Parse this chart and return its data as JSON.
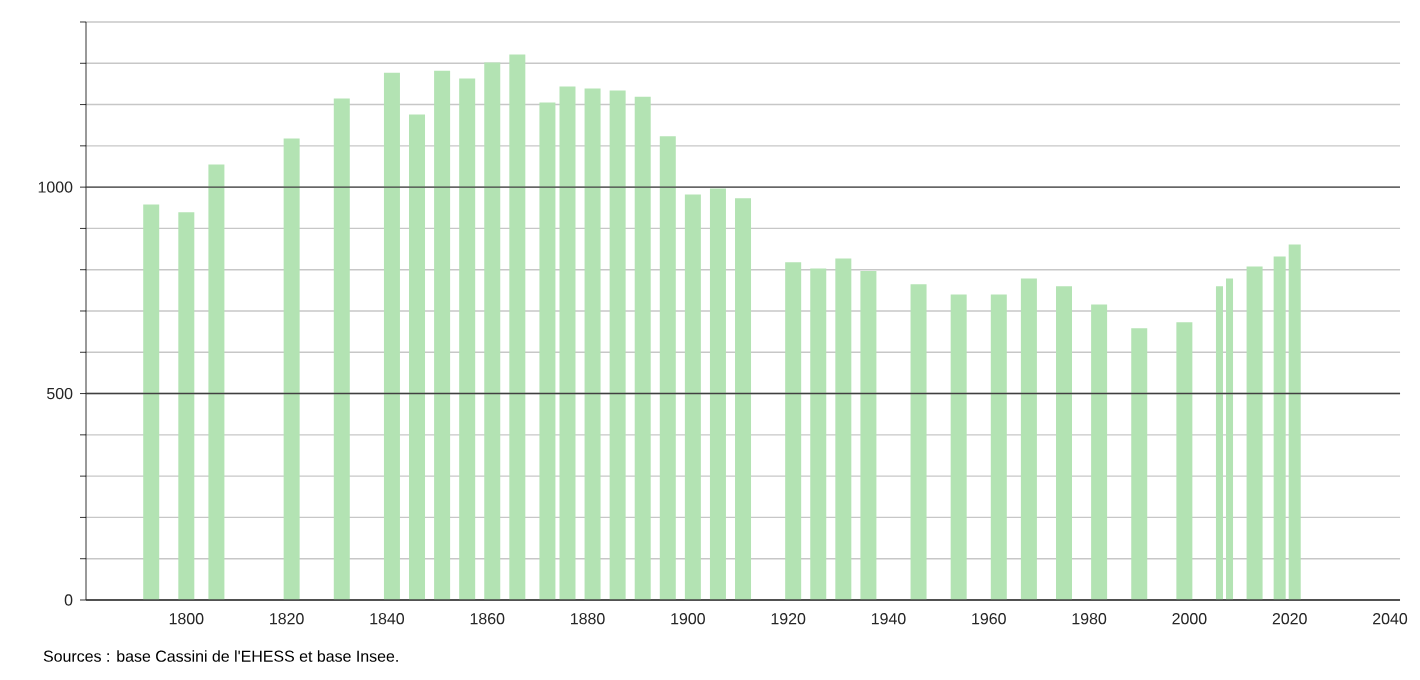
{
  "chart_data": {
    "type": "bar",
    "x": [
      1793,
      1800,
      1806,
      1821,
      1831,
      1841,
      1846,
      1851,
      1856,
      1861,
      1866,
      1872,
      1876,
      1881,
      1886,
      1891,
      1896,
      1901,
      1906,
      1911,
      1921,
      1926,
      1931,
      1936,
      1946,
      1954,
      1962,
      1968,
      1975,
      1982,
      1990,
      1999,
      2006,
      2008,
      2013,
      2018,
      2021
    ],
    "values": [
      958,
      939,
      1055,
      1118,
      1215,
      1277,
      1176,
      1282,
      1263,
      1302,
      1321,
      1205,
      1244,
      1239,
      1234,
      1219,
      1123,
      982,
      997,
      973,
      818,
      803,
      827,
      797,
      765,
      740,
      740,
      779,
      760,
      716,
      658,
      673,
      760,
      779,
      808,
      832,
      861
    ],
    "color": "#b3e3b3",
    "xlim": [
      1780,
      2042
    ],
    "xticks": [
      1800,
      1820,
      1840,
      1860,
      1880,
      1900,
      1920,
      1940,
      1960,
      1980,
      2000,
      2020,
      2040
    ],
    "ylim": [
      0,
      1400
    ],
    "yticks": [
      0,
      {
        "value": 100,
        "label": null
      },
      {
        "value": 200,
        "label": null
      },
      {
        "value": 300,
        "label": null
      },
      {
        "value": 400,
        "label": null
      },
      500,
      {
        "value": 600,
        "label": null
      },
      {
        "value": 700,
        "label": null
      },
      {
        "value": 800,
        "label": null
      },
      {
        "value": 900,
        "label": null
      },
      1000,
      {
        "value": 1100,
        "label": null
      },
      {
        "value": 1200,
        "label": null
      },
      {
        "value": 1300,
        "label": null
      },
      {
        "value": 1400,
        "label": null
      }
    ],
    "grid": "y",
    "annotations": [
      "Sources : base Cassini de l'EHESS et base Insee."
    ]
  }
}
